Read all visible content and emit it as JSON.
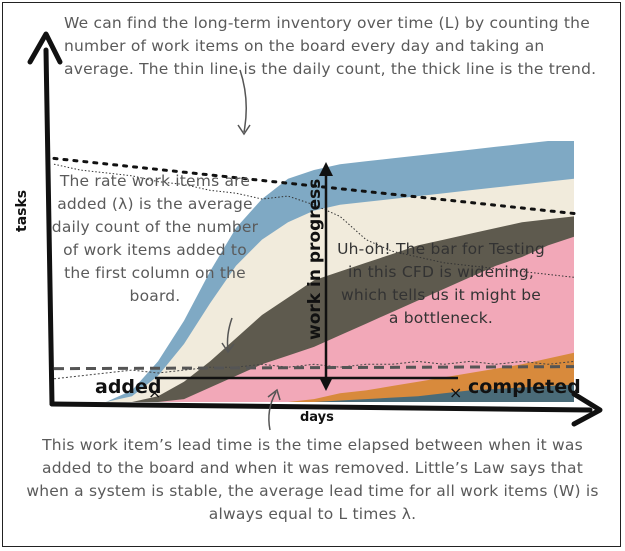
{
  "chart_data": {
    "type": "area",
    "title": "",
    "xlabel": "days",
    "ylabel": "tasks",
    "xlim": [
      0,
      20
    ],
    "ylim": [
      0,
      100
    ],
    "x": [
      0,
      1,
      2,
      3,
      4,
      5,
      6,
      7,
      8,
      9,
      10,
      11,
      12,
      13,
      14,
      15,
      16,
      17,
      18,
      19,
      20
    ],
    "series": [
      {
        "color": "#4a6b78",
        "values": [
          0,
          0,
          0,
          0,
          0,
          0,
          0,
          0,
          0,
          0,
          0,
          0.5,
          1,
          1.5,
          2,
          3,
          4,
          4.5,
          5,
          5.5,
          6
        ]
      },
      {
        "color": "#d88a3c",
        "values": [
          0,
          0,
          0,
          0,
          0,
          0,
          0,
          0,
          0,
          0,
          1,
          3,
          4,
          5.5,
          7,
          8.5,
          10,
          11.5,
          13,
          15,
          17
        ]
      },
      {
        "color": "#f2a8b8",
        "values": [
          0,
          0,
          0,
          0,
          0,
          1,
          5,
          9,
          13,
          16,
          19,
          23,
          27,
          31,
          35,
          39,
          43,
          47,
          50,
          54,
          57
        ]
      },
      {
        "color": "#5e5a4e",
        "values": [
          0,
          0,
          0,
          0,
          2,
          7,
          14,
          22,
          30,
          36,
          42,
          45,
          48,
          51,
          54,
          56,
          58,
          60,
          62,
          63,
          64
        ]
      },
      {
        "color": "#f1ebdc",
        "values": [
          0,
          0,
          0,
          2,
          9,
          20,
          34,
          47,
          56,
          62,
          66,
          68,
          69,
          70,
          71,
          72,
          73,
          74,
          75,
          76,
          77
        ]
      },
      {
        "color": "#7fa9c4",
        "values": [
          0,
          0,
          0,
          4,
          14,
          28,
          45,
          60,
          70,
          77,
          80,
          82,
          83,
          84,
          85,
          86,
          87,
          88,
          89,
          90,
          90
        ]
      }
    ],
    "daily_count": [
      8,
      9,
      10,
      11,
      10,
      11,
      12,
      12,
      13,
      12,
      13,
      12,
      13,
      13,
      14,
      13,
      14,
      13,
      14,
      13,
      14
    ],
    "average_line": [
      11.5,
      12.2
    ],
    "long_term_inventory_count": [
      82,
      80,
      79,
      78,
      76,
      75,
      73,
      72,
      70,
      71,
      68,
      64,
      56,
      52,
      50,
      48,
      47,
      46,
      45,
      44,
      43
    ],
    "long_term_inventory_trend": [
      84,
      65
    ]
  },
  "annotations": {
    "top": "We can find the long-term inventory over time (L) by counting the number of work items on the board every day and taking an average. The thin line is the daily count, the thick line is the trend.",
    "left": "The rate work items are added (λ) is the average daily count of the number of work items added to the first column on the board.",
    "middle": "Uh-oh! The bar for Testing in this CFD is widening, which tells us it might be a bottleneck.",
    "bottom": "This work item’s lead time is the time elapsed between when it was added to the board and when it was removed. Little’s Law says that when a system is stable, the average lead time for all work items (W) is always equal to L times λ.",
    "added": "added",
    "completed": "completed",
    "wip": "work in progress"
  }
}
